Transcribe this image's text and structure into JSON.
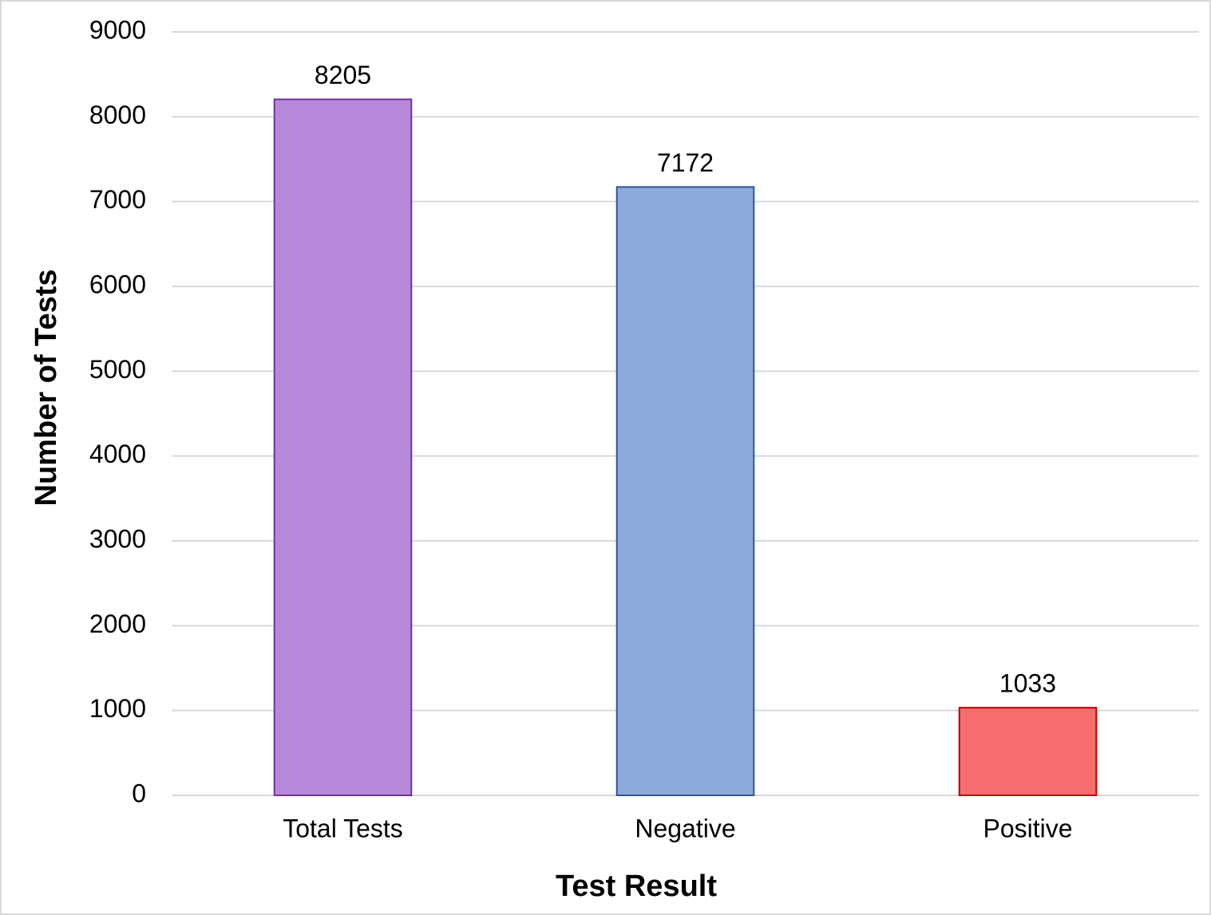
{
  "chart_data": {
    "type": "bar",
    "x_label": "Test Result",
    "y_label": "Number of Tests",
    "categories": [
      "Total Tests",
      "Negative",
      "Positive"
    ],
    "values": [
      8205,
      7172,
      1033
    ],
    "colors": [
      "#b788d9",
      "#8eaadc",
      "#f76d6d"
    ],
    "edge_colors": [
      "#7030a0",
      "#2f5597",
      "#c00000"
    ],
    "ylim": [
      0,
      9000
    ],
    "yticks": [
      0,
      1000,
      2000,
      3000,
      4000,
      5000,
      6000,
      7000,
      8000,
      9000
    ],
    "grid": true
  }
}
